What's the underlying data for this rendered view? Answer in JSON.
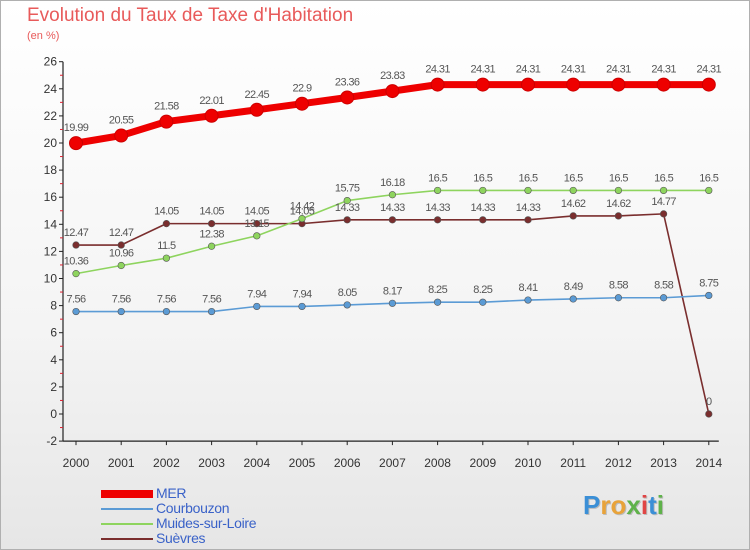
{
  "title": "Evolution du Taux de Taxe d'Habitation",
  "subtitle": "(en %)",
  "logo": {
    "letters": [
      "P",
      "r",
      "o",
      "x",
      "i",
      "t",
      "i"
    ],
    "colors": [
      "#3b8fd6",
      "#e8a33a",
      "#e8a33a",
      "#5fb24a",
      "#e04545",
      "#3b8fd6",
      "#5fb24a"
    ]
  },
  "chart_data": {
    "type": "line",
    "x": [
      "2000",
      "2001",
      "2002",
      "2003",
      "2004",
      "2005",
      "2006",
      "2007",
      "2008",
      "2009",
      "2010",
      "2011",
      "2012",
      "2013",
      "2014"
    ],
    "ylim": [
      -2,
      26
    ],
    "yticks": [
      "-2",
      "0",
      "2",
      "4",
      "6",
      "8",
      "10",
      "12",
      "14",
      "16",
      "18",
      "20",
      "22",
      "24",
      "26"
    ],
    "grid": false,
    "legend_position": "bottom-left",
    "series": [
      {
        "name": "MER",
        "color": "#ee0000",
        "values": [
          19.99,
          20.55,
          21.58,
          22.01,
          22.45,
          22.9,
          23.36,
          23.83,
          24.31,
          24.31,
          24.31,
          24.31,
          24.31,
          24.31,
          24.31
        ],
        "labels": [
          "19.99",
          "20.55",
          "21.58",
          "22.01",
          "22.45",
          "22.9",
          "23.36",
          "23.83",
          "24.31",
          "24.31",
          "24.31",
          "24.31",
          "24.31",
          "24.31",
          "24.31"
        ]
      },
      {
        "name": "Courbouzon",
        "color": "#5b9bd5",
        "values": [
          7.56,
          7.56,
          7.56,
          7.56,
          7.94,
          7.94,
          8.05,
          8.17,
          8.25,
          8.25,
          8.41,
          8.49,
          8.58,
          8.58,
          8.75
        ],
        "labels": [
          "7.56",
          "7.56",
          "7.56",
          "7.56",
          "7.94",
          "7.94",
          "8.05",
          "8.17",
          "8.25",
          "8.25",
          "8.41",
          "8.49",
          "8.58",
          "8.58",
          "8.75"
        ]
      },
      {
        "name": "Muides-sur-Loire",
        "color": "#8ed45e",
        "values": [
          10.36,
          10.96,
          11.5,
          12.38,
          13.15,
          14.42,
          15.75,
          16.18,
          16.5,
          16.5,
          16.5,
          16.5,
          16.5,
          16.5,
          16.5
        ],
        "labels": [
          "10.36",
          "10.96",
          "11.5",
          "12.38",
          "13.15",
          "14.42",
          "15.75",
          "16.18",
          "16.5",
          "16.5",
          "16.5",
          "16.5",
          "16.5",
          "16.5",
          "16.5"
        ]
      },
      {
        "name": "Suèvres",
        "color": "#7a2e2e",
        "values": [
          12.47,
          12.47,
          14.05,
          14.05,
          14.05,
          14.05,
          14.33,
          14.33,
          14.33,
          14.33,
          14.33,
          14.62,
          14.62,
          14.77,
          0
        ],
        "labels": [
          "12.47",
          "12.47",
          "14.05",
          "14.05",
          "14.05",
          "14.05",
          "14.33",
          "14.33",
          "14.33",
          "14.33",
          "14.33",
          "14.62",
          "14.62",
          "14.77",
          "0"
        ]
      }
    ]
  }
}
